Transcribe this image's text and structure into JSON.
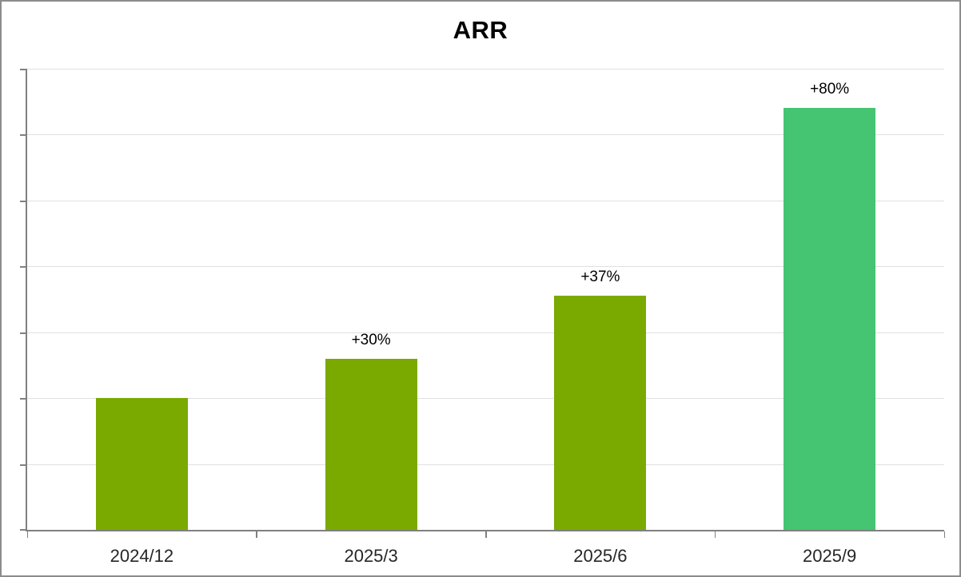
{
  "chart_data": {
    "type": "bar",
    "title": "ARR",
    "categories": [
      "2024/12",
      "2025/3",
      "2025/6",
      "2025/9"
    ],
    "values": [
      100,
      130,
      178,
      320
    ],
    "data_labels": [
      "",
      "+30%",
      "+37%",
      "+80%"
    ],
    "bar_colors": [
      "#7AAA00",
      "#7AAA00",
      "#7AAA00",
      "#45C471"
    ],
    "xlabel": "",
    "ylabel": "",
    "ylim": [
      0,
      350
    ],
    "gridline_step": 50,
    "grid": true,
    "legend": "none",
    "y_tick_labels": "none",
    "note": "y-axis has no value labels; values are a relative index (2024/12 = 100) inferred from bar heights and the growth labels"
  },
  "colors": {
    "bar_green_olive": "#7AAA00",
    "bar_green_bright": "#45C471",
    "axis": "#808080",
    "gridline": "#E0E0E0",
    "frame_border": "#8C8C8C"
  }
}
